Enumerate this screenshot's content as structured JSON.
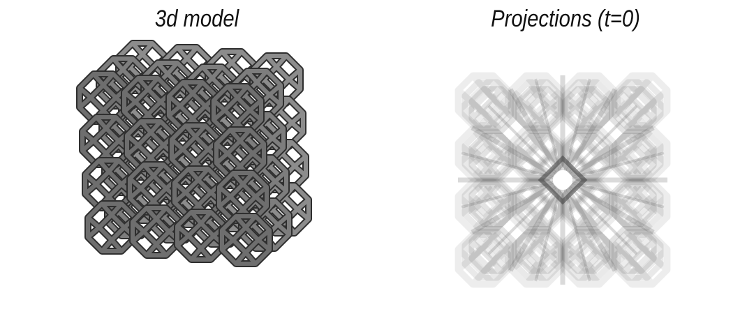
{
  "panels": {
    "left": {
      "title": "3d model",
      "fill": "#6e6e6e",
      "edge": "#2f2f2f"
    },
    "right": {
      "title": "Projections (t=0)",
      "tone": "#5a5a5a"
    }
  },
  "lattice": {
    "rows": 4,
    "cols": 4,
    "layers": 3
  }
}
